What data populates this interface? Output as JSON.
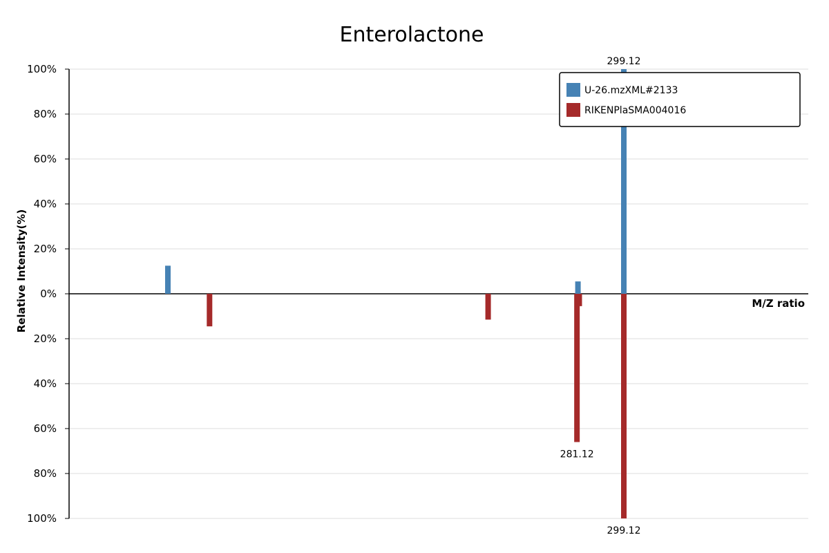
{
  "chart_data": {
    "type": "bar",
    "title": "Enterolactone",
    "xlabel": "M/Z ratio",
    "ylabel": "Relative Intensity(%)",
    "ylim": [
      -100,
      100
    ],
    "y_ticks": [
      "100%",
      "80%",
      "60%",
      "40%",
      "20%",
      "0%",
      "20%",
      "40%",
      "60%",
      "80%",
      "100%"
    ],
    "grid": true,
    "legend_position": "top-right",
    "series": [
      {
        "name": "U-26.mzXML#2133",
        "color": "#4682B4",
        "direction": "up",
        "peaks": [
          {
            "mz": 124,
            "intensity": 12.5
          },
          {
            "mz": 281.5,
            "intensity": 5.5
          },
          {
            "mz": 299.12,
            "intensity": 100,
            "label": "299.12"
          }
        ]
      },
      {
        "name": "RIKENPlaSMA004016",
        "color": "#A52A2A",
        "direction": "down",
        "peaks": [
          {
            "mz": 140,
            "intensity": 14.5
          },
          {
            "mz": 247,
            "intensity": 11.5
          },
          {
            "mz": 281.12,
            "intensity": 66,
            "label": "281.12"
          },
          {
            "mz": 282,
            "intensity": 5.5
          },
          {
            "mz": 299.12,
            "intensity": 100,
            "label": "299.12"
          }
        ]
      }
    ]
  }
}
